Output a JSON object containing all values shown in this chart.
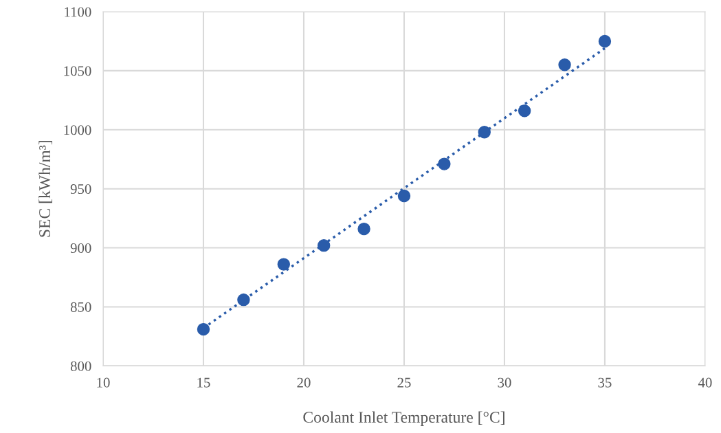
{
  "chart_data": {
    "type": "scatter",
    "xlabel": "Coolant Inlet Temperature [°C]",
    "ylabel": "SEC [kWh/m³]",
    "x": [
      15,
      17,
      19,
      21,
      23,
      25,
      27,
      29,
      31,
      33,
      35
    ],
    "series": [
      {
        "color": "#2a5caa",
        "marker": "circle",
        "values": [
          831,
          856,
          886,
          902,
          916,
          944,
          971,
          998,
          1016,
          1055,
          1075
        ]
      },
      {
        "type": "line",
        "color": "#2a5caa",
        "line_style": "dotted",
        "marker": "none",
        "x": [
          15,
          35
        ],
        "values": [
          832,
          1069
        ]
      }
    ],
    "xlim": [
      10,
      40
    ],
    "xticks": [
      10,
      15,
      20,
      25,
      30,
      35,
      40
    ],
    "ylim": [
      800,
      1100
    ],
    "yticks": [
      800,
      850,
      900,
      950,
      1000,
      1050,
      1100
    ],
    "grid": true
  }
}
